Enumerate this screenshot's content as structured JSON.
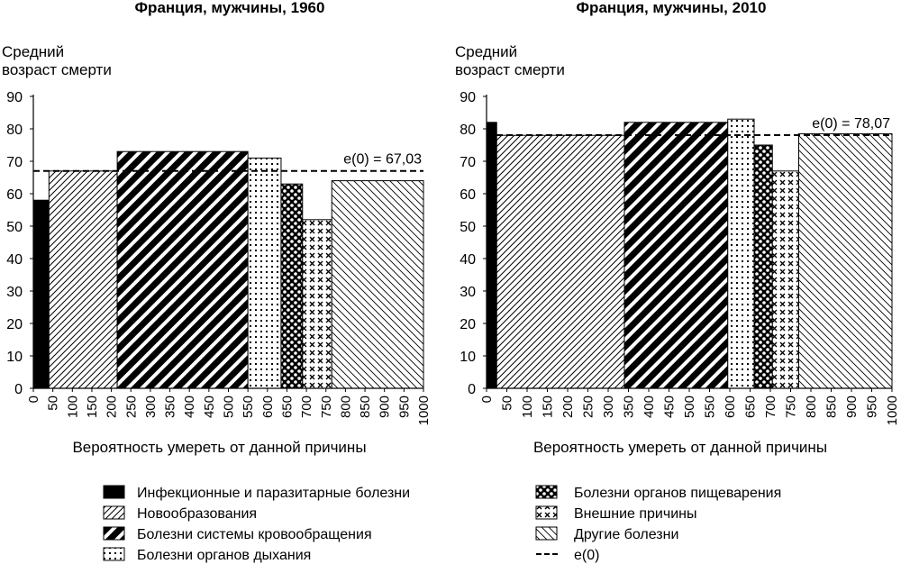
{
  "chart_data": [
    {
      "type": "bar",
      "variable_width": true,
      "title": "Франция, мужчины, 1960",
      "ylabel": [
        "Средний",
        "возраст смерти"
      ],
      "xlabel": "Вероятность умереть от данной причины",
      "ylim": [
        0,
        90
      ],
      "yticks": [
        0,
        10,
        20,
        30,
        40,
        50,
        60,
        70,
        80,
        90
      ],
      "xlim": [
        0,
        1000
      ],
      "xticks": [
        "0",
        "50",
        "100",
        "150",
        "200",
        "250",
        "300",
        "350",
        "400",
        "450",
        "500",
        "550",
        "600",
        "650",
        "700",
        "750",
        "800",
        "850",
        "900",
        "950",
        "1000"
      ],
      "e0": 67.03,
      "e0_label": "e(0) = 67,03",
      "bars": [
        {
          "cause": "infectious",
          "x0": 0,
          "x1": 40,
          "value": 58
        },
        {
          "cause": "neoplasms",
          "x0": 40,
          "x1": 215,
          "value": 67
        },
        {
          "cause": "circulatory",
          "x0": 215,
          "x1": 550,
          "value": 73
        },
        {
          "cause": "respiratory",
          "x0": 550,
          "x1": 635,
          "value": 71
        },
        {
          "cause": "digestive",
          "x0": 635,
          "x1": 690,
          "value": 63
        },
        {
          "cause": "external",
          "x0": 690,
          "x1": 765,
          "value": 52
        },
        {
          "cause": "other",
          "x0": 765,
          "x1": 1000,
          "value": 64
        }
      ]
    },
    {
      "type": "bar",
      "variable_width": true,
      "title": "Франция, мужчины, 2010",
      "ylabel": [
        "Средний",
        "возраст смерти"
      ],
      "xlabel": "Вероятность умереть от данной причины",
      "ylim": [
        0,
        90
      ],
      "yticks": [
        0,
        10,
        20,
        30,
        40,
        50,
        60,
        70,
        80,
        90
      ],
      "xlim": [
        0,
        1000
      ],
      "xticks": [
        "0",
        "50",
        "100",
        "150",
        "200",
        "250",
        "300",
        "350",
        "400",
        "450",
        "500",
        "550",
        "600",
        "650",
        "700",
        "750",
        "800",
        "850",
        "900",
        "950",
        "1000"
      ],
      "e0": 78.07,
      "e0_label": "e(0) = 78,07",
      "bars": [
        {
          "cause": "infectious",
          "x0": 0,
          "x1": 25,
          "value": 82
        },
        {
          "cause": "neoplasms",
          "x0": 25,
          "x1": 340,
          "value": 78
        },
        {
          "cause": "circulatory",
          "x0": 340,
          "x1": 595,
          "value": 82
        },
        {
          "cause": "respiratory",
          "x0": 595,
          "x1": 660,
          "value": 83
        },
        {
          "cause": "digestive",
          "x0": 660,
          "x1": 705,
          "value": 75
        },
        {
          "cause": "external",
          "x0": 705,
          "x1": 770,
          "value": 67
        },
        {
          "cause": "other",
          "x0": 770,
          "x1": 1000,
          "value": 78.5
        }
      ]
    }
  ],
  "legend": [
    {
      "cause": "infectious",
      "label": "Инфекционные и паразитарные болезни"
    },
    {
      "cause": "neoplasms",
      "label": "Новообразования"
    },
    {
      "cause": "circulatory",
      "label": "Болезни системы кровообращения"
    },
    {
      "cause": "respiratory",
      "label": "Болезни органов дыхания"
    },
    {
      "cause": "digestive",
      "label": "Болезни органов пищеварения"
    },
    {
      "cause": "external",
      "label": "Внешние причины"
    },
    {
      "cause": "other",
      "label": "Другие болезни"
    },
    {
      "cause": "e0",
      "label": "e(0)"
    }
  ],
  "colors": {
    "ink": "#000000",
    "background": "#ffffff"
  }
}
